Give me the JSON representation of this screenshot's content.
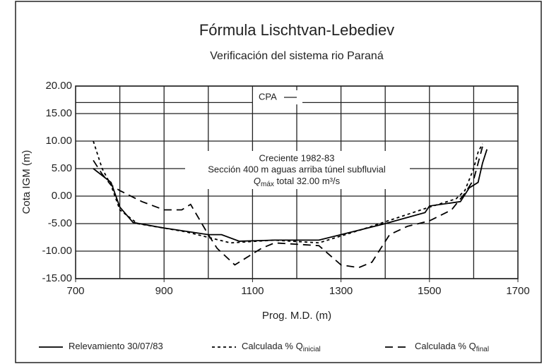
{
  "chart_data": {
    "type": "line",
    "title": "Fórmula Lischtvan-Lebediev",
    "subtitle": "Verificación del sistema rio Paraná",
    "x_label": "Prog. M.D. (m)",
    "y_label": "Cota IGM (m)",
    "annotations": [
      "Creciente 1982-83",
      "Sección 400 m aguas arriba túnel subfluvial"
    ],
    "annotation_q": {
      "symbol": "Q",
      "sub": "máx",
      "text": " total 32.00 m³/s"
    },
    "reference_lines": [
      {
        "value": 17,
        "label": "CPA"
      }
    ],
    "xlim": [
      700,
      1700
    ],
    "xticks": [
      700,
      900,
      1100,
      1300,
      1500,
      1700
    ],
    "xgrid": [
      800,
      900,
      1000,
      1100,
      1200,
      1300,
      1400,
      1500,
      1600
    ],
    "ylim": [
      -15,
      20
    ],
    "yticks": [
      {
        "value": 20,
        "label": "20.00"
      },
      {
        "value": 15,
        "label": "15.00"
      },
      {
        "value": 10,
        "label": "10.00"
      },
      {
        "value": 5,
        "label": "5.00"
      },
      {
        "value": 0,
        "label": "0.00"
      },
      {
        "value": -5,
        "label": "-5.00"
      },
      {
        "value": -10,
        "label": "-10.00"
      },
      {
        "value": -15,
        "label": "-15.00"
      }
    ],
    "grid": true,
    "series": [
      {
        "name": "Relevamiento 30/07/83",
        "color": "#000000",
        "dash": "solid",
        "x": [
          740,
          780,
          800,
          830,
          900,
          1000,
          1030,
          1070,
          1150,
          1250,
          1300,
          1400,
          1490,
          1500,
          1570,
          1590,
          1610,
          1620,
          1630
        ],
        "values": [
          5,
          2.5,
          -2,
          -4.8,
          -5.8,
          -7,
          -7,
          -8.2,
          -8,
          -8,
          -7,
          -5,
          -3,
          -1.8,
          -1,
          1.5,
          2.5,
          6,
          8.5
        ]
      },
      {
        "name": "Calculada % Q",
        "name_sub": "inicial",
        "color": "#000000",
        "dash": "dotted",
        "x": [
          740,
          760,
          780,
          800,
          840,
          950,
          1000,
          1050,
          1150,
          1250,
          1350,
          1500,
          1560,
          1580,
          1600,
          1610,
          1620
        ],
        "values": [
          10,
          5,
          2,
          -2.5,
          -5,
          -6.5,
          -7.5,
          -8.5,
          -8,
          -8.5,
          -6,
          -2,
          -0.5,
          1,
          5,
          8,
          9.5
        ]
      },
      {
        "name": "Calculada % Q",
        "name_sub": "final",
        "color": "#000000",
        "dash": "dashed",
        "x": [
          740,
          760,
          780,
          800,
          850,
          900,
          940,
          960,
          1000,
          1020,
          1060,
          1080,
          1120,
          1150,
          1250,
          1300,
          1340,
          1370,
          1410,
          1450,
          1500,
          1550,
          1580,
          1600,
          1610,
          1620
        ],
        "values": [
          6.5,
          4,
          2,
          1,
          -1,
          -2.5,
          -2.5,
          -1.5,
          -7,
          -9.5,
          -12.5,
          -11.5,
          -9.5,
          -8.5,
          -9,
          -12.5,
          -13,
          -12,
          -7,
          -5.5,
          -4.5,
          -2.5,
          0.5,
          3,
          6,
          9
        ]
      }
    ]
  }
}
